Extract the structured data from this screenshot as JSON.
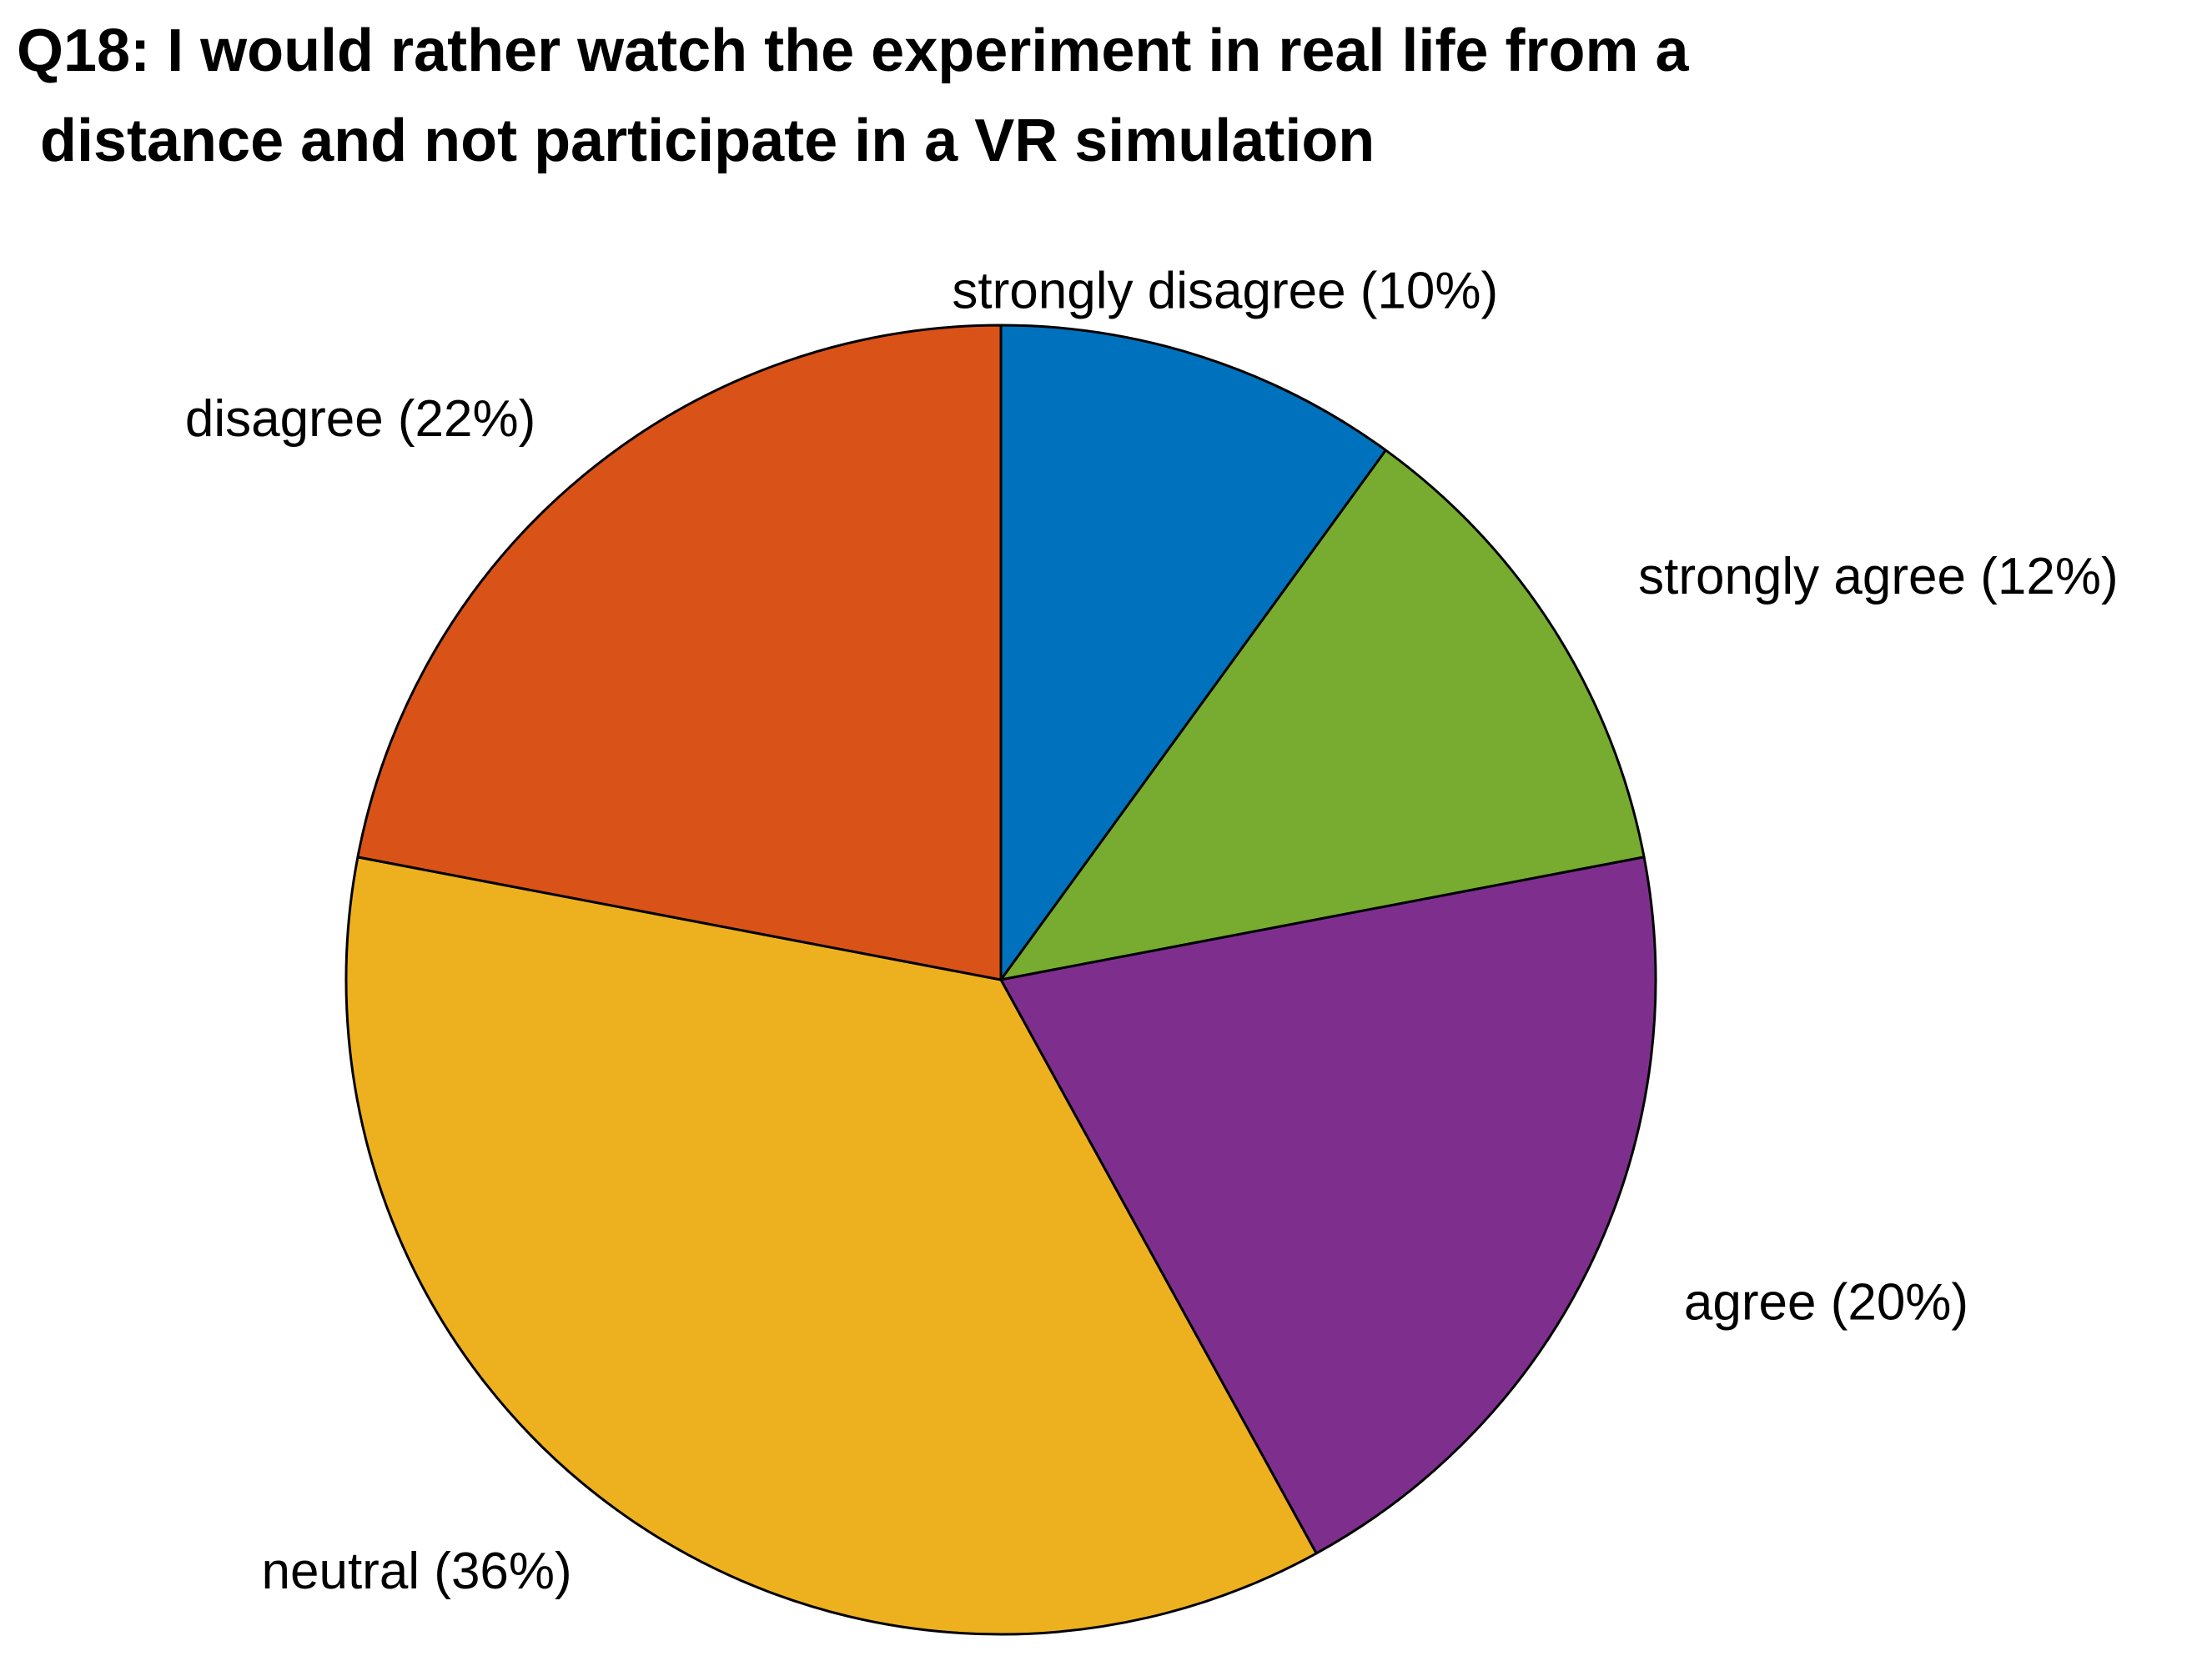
{
  "chart_data": {
    "type": "pie",
    "title_lines": [
      "Q18: I would rather watch the experiment in real life from a",
      "distance and not participate in a VR simulation"
    ],
    "slices": [
      {
        "label": "strongly disagree (10%)",
        "category": "strongly disagree",
        "value": 10,
        "color": "#0072BD"
      },
      {
        "label": "strongly agree (12%)",
        "category": "strongly agree",
        "value": 12,
        "color": "#77AC30"
      },
      {
        "label": "agree (20%)",
        "category": "agree",
        "value": 20,
        "color": "#7E2F8E"
      },
      {
        "label": "neutral (36%)",
        "category": "neutral",
        "value": 36,
        "color": "#EDB120"
      },
      {
        "label": "disagree (22%)",
        "category": "disagree",
        "value": 22,
        "color": "#D95319"
      }
    ],
    "start_angle": "12 o'clock",
    "direction": "clockwise",
    "legend": "none",
    "grid": false
  }
}
